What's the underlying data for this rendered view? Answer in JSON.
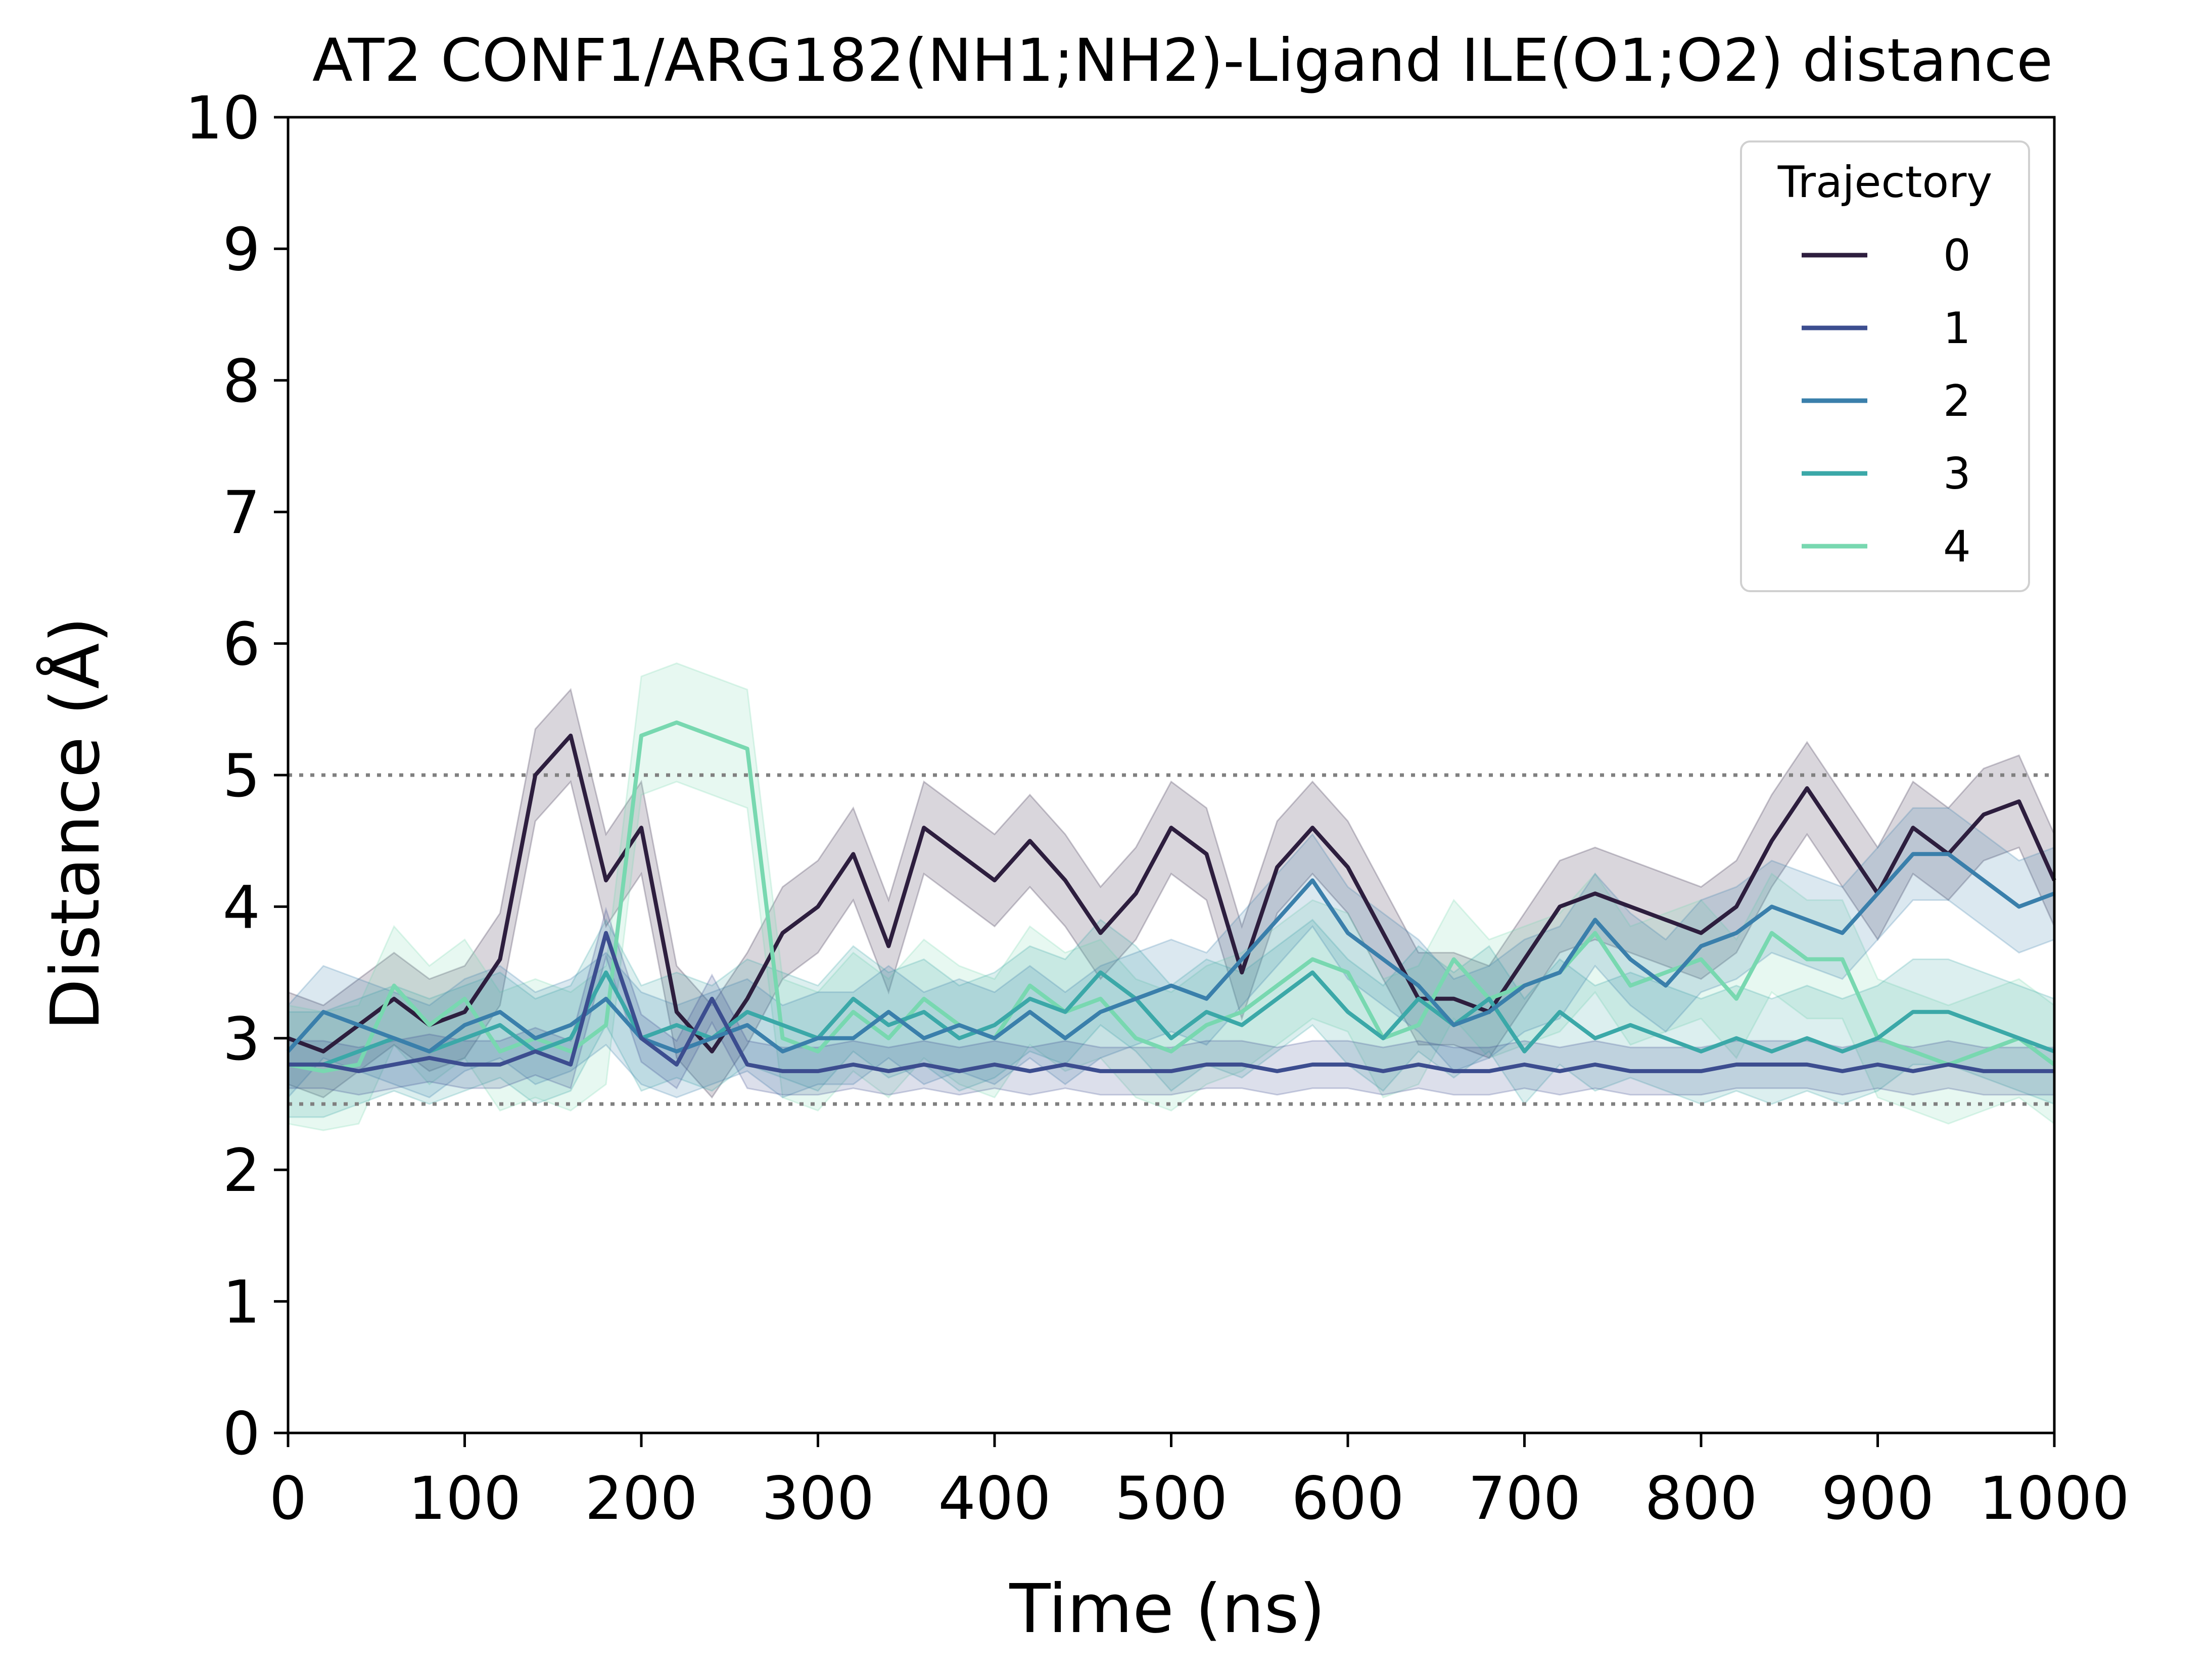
{
  "chart_data": {
    "type": "line",
    "title": "AT2 CONF1/ARG182(NH1;NH2)-Ligand ILE(O1;O2) distance",
    "xlabel": "Time (ns)",
    "ylabel": "Distance (Å)",
    "xlim": [
      0,
      1000
    ],
    "ylim": [
      0,
      10
    ],
    "xticks": [
      "0",
      "100",
      "200",
      "300",
      "400",
      "500",
      "600",
      "700",
      "800",
      "900",
      "1000"
    ],
    "yticks": [
      "0",
      "1",
      "2",
      "3",
      "4",
      "5",
      "6",
      "7",
      "8",
      "9",
      "10"
    ],
    "grid": false,
    "reference_lines": [
      {
        "y": 2.5,
        "style": "dotted",
        "color": "#808080"
      },
      {
        "y": 5.0,
        "style": "dotted",
        "color": "#808080"
      }
    ],
    "legend": {
      "title": "Trajectory",
      "placement": "top-right"
    },
    "band_half_width": [
      0.35,
      0.18,
      0.35,
      0.4,
      0.45
    ],
    "x": [
      0,
      20,
      40,
      60,
      80,
      100,
      120,
      140,
      160,
      180,
      200,
      220,
      240,
      260,
      280,
      300,
      320,
      340,
      360,
      380,
      400,
      420,
      440,
      460,
      480,
      500,
      520,
      540,
      560,
      580,
      600,
      620,
      640,
      660,
      680,
      700,
      720,
      740,
      760,
      780,
      800,
      820,
      840,
      860,
      880,
      900,
      920,
      940,
      960,
      980,
      1000
    ],
    "series": [
      {
        "name": "0",
        "color": "#2d1e3e",
        "values": [
          3.0,
          2.9,
          3.1,
          3.3,
          3.1,
          3.2,
          3.6,
          5.0,
          5.3,
          4.2,
          4.6,
          3.2,
          2.9,
          3.3,
          3.8,
          4.0,
          4.4,
          3.7,
          4.6,
          4.4,
          4.2,
          4.5,
          4.2,
          3.8,
          4.1,
          4.6,
          4.4,
          3.5,
          4.3,
          4.6,
          4.3,
          3.8,
          3.3,
          3.3,
          3.2,
          3.6,
          4.0,
          4.1,
          4.0,
          3.9,
          3.8,
          4.0,
          4.5,
          4.9,
          4.5,
          4.1,
          4.6,
          4.4,
          4.7,
          4.8,
          4.2
        ]
      },
      {
        "name": "1",
        "color": "#3c4d8f",
        "values": [
          2.8,
          2.8,
          2.75,
          2.8,
          2.85,
          2.8,
          2.8,
          2.9,
          2.8,
          3.8,
          3.0,
          2.8,
          3.3,
          2.8,
          2.75,
          2.75,
          2.8,
          2.75,
          2.8,
          2.75,
          2.8,
          2.75,
          2.8,
          2.75,
          2.75,
          2.75,
          2.8,
          2.8,
          2.75,
          2.8,
          2.8,
          2.75,
          2.8,
          2.75,
          2.75,
          2.8,
          2.75,
          2.8,
          2.75,
          2.75,
          2.75,
          2.8,
          2.8,
          2.8,
          2.75,
          2.8,
          2.75,
          2.8,
          2.75,
          2.75,
          2.75
        ]
      },
      {
        "name": "2",
        "color": "#3a7fab",
        "values": [
          2.9,
          3.2,
          3.1,
          3.0,
          2.9,
          3.1,
          3.2,
          3.0,
          3.1,
          3.3,
          3.0,
          2.9,
          3.0,
          3.1,
          2.9,
          3.0,
          3.0,
          3.2,
          3.0,
          3.1,
          3.0,
          3.2,
          3.0,
          3.2,
          3.3,
          3.4,
          3.3,
          3.6,
          3.9,
          4.2,
          3.8,
          3.6,
          3.4,
          3.1,
          3.2,
          3.4,
          3.5,
          3.9,
          3.6,
          3.4,
          3.7,
          3.8,
          4.0,
          3.9,
          3.8,
          4.1,
          4.4,
          4.4,
          4.2,
          4.0,
          4.1
        ]
      },
      {
        "name": "3",
        "color": "#3ba8a8",
        "values": [
          2.8,
          2.8,
          2.9,
          3.0,
          2.9,
          3.0,
          3.1,
          2.9,
          3.0,
          3.5,
          3.0,
          3.1,
          3.0,
          3.2,
          3.1,
          3.0,
          3.3,
          3.1,
          3.2,
          3.0,
          3.1,
          3.3,
          3.2,
          3.5,
          3.3,
          3.0,
          3.2,
          3.1,
          3.3,
          3.5,
          3.2,
          3.0,
          3.3,
          3.1,
          3.3,
          2.9,
          3.2,
          3.0,
          3.1,
          3.0,
          2.9,
          3.0,
          2.9,
          3.0,
          2.9,
          3.0,
          3.2,
          3.2,
          3.1,
          3.0,
          2.9
        ]
      },
      {
        "name": "4",
        "color": "#78d8b0",
        "values": [
          2.8,
          2.75,
          2.8,
          3.4,
          3.1,
          3.3,
          2.9,
          3.0,
          2.9,
          3.1,
          5.3,
          5.4,
          5.3,
          5.2,
          3.0,
          2.9,
          3.2,
          3.0,
          3.3,
          3.1,
          3.0,
          3.4,
          3.2,
          3.3,
          3.0,
          2.9,
          3.1,
          3.2,
          3.4,
          3.6,
          3.5,
          3.0,
          3.1,
          3.6,
          3.3,
          3.4,
          3.5,
          3.8,
          3.4,
          3.5,
          3.6,
          3.3,
          3.8,
          3.6,
          3.6,
          3.0,
          2.9,
          2.8,
          2.9,
          3.0,
          2.8
        ]
      }
    ]
  }
}
